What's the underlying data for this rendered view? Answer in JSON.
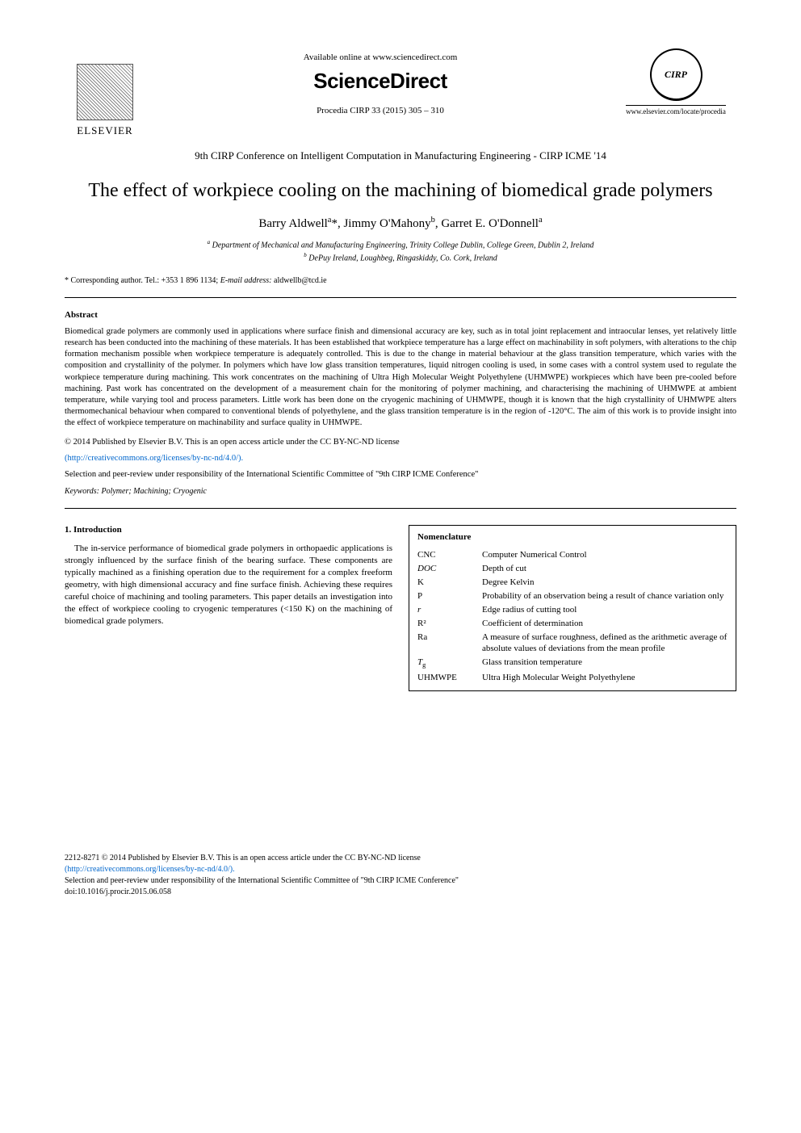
{
  "header": {
    "available_online": "Available online at www.sciencedirect.com",
    "sciencedirect": "ScienceDirect",
    "journal_line": "Procedia CIRP 33 (2015) 305 – 310",
    "elsevier_label": "ELSEVIER",
    "cirp_label": "CIRP",
    "elsevier_url": "www.elsevier.com/locate/procedia"
  },
  "conference": "9th CIRP Conference on Intelligent Computation in Manufacturing Engineering - CIRP ICME '14",
  "title": "The effect of workpiece cooling on the machining of biomedical grade polymers",
  "authors_html": "Barry Aldwell<sup>a</sup>*, Jimmy O'Mahony<sup>b</sup>, Garret E. O'Donnell<sup>a</sup>",
  "affiliations": {
    "a": "a Department of Mechanical and Manufacturing Engineering, Trinity College Dublin, College Green, Dublin 2, Ireland",
    "b": "b DePuy Ireland, Loughbeg, Ringaskiddy, Co. Cork, Ireland"
  },
  "corresponding": "* Corresponding author. Tel.: +353 1 896 1134; E-mail address: aldwellb@tcd.ie",
  "abstract": {
    "heading": "Abstract",
    "text": "Biomedical grade polymers are commonly used in applications where surface finish and dimensional accuracy are key, such as in total joint replacement and intraocular lenses, yet relatively little research has been conducted into the machining of these materials. It has been established that workpiece temperature has a large effect on machinability in soft polymers, with alterations to the chip formation mechanism possible when workpiece temperature is adequately controlled. This is due to the change in material behaviour at the glass transition temperature, which varies with the composition and crystallinity of the polymer. In polymers which have low glass transition temperatures, liquid nitrogen cooling is used, in some cases with a control system used to regulate the workpiece temperature during machining. This work concentrates on the machining of Ultra High Molecular Weight Polyethylene (UHMWPE) workpieces which have been pre-cooled before machining. Past work has concentrated on the development of a measurement chain for the monitoring of polymer machining, and characterising the machining of UHMWPE at ambient temperature, while varying tool and process parameters. Little work has been done on the cryogenic machining of UHMWPE, though it is known that the high crystallinity of UHMWPE alters thermomechanical behaviour when compared to conventional blends of polyethylene, and the glass transition temperature is in the region of -120°C. The aim of this work is to provide insight into the effect of workpiece temperature on machinability and surface quality in UHMWPE."
  },
  "license": {
    "copyright": "© 2014 Published by Elsevier B.V. This is an open access article under the CC BY-NC-ND license",
    "link": "(http://creativecommons.org/licenses/by-nc-nd/4.0/).",
    "selection": "Selection and peer-review under responsibility of the International Scientific Committee of \"9th CIRP ICME Conference\""
  },
  "keywords": {
    "label": "Keywords:",
    "items": "Polymer; Machining; Cryogenic"
  },
  "intro": {
    "heading": "1. Introduction",
    "text": "The in-service performance of biomedical grade polymers in orthopaedic applications is strongly influenced by the surface finish of the bearing surface. These components are typically machined as a finishing operation due to the requirement for a complex freeform geometry, with high dimensional accuracy and fine surface finish. Achieving these requires careful choice of machining and tooling parameters. This paper details an investigation into the effect of workpiece cooling to cryogenic temperatures (<150 K) on the machining of biomedical grade polymers."
  },
  "nomenclature": {
    "heading": "Nomenclature",
    "items": [
      {
        "sym": "CNC",
        "def": "Computer Numerical Control"
      },
      {
        "sym": "DOC",
        "def": "Depth of cut"
      },
      {
        "sym": "K",
        "def": "Degree Kelvin"
      },
      {
        "sym": "P",
        "def": "Probability of an observation being a result of chance variation only"
      },
      {
        "sym": "r",
        "def": "Edge radius of cutting tool"
      },
      {
        "sym": "R²",
        "def": "Coefficient of determination"
      },
      {
        "sym": "Ra",
        "def": "A measure of surface roughness, defined as the arithmetic average of absolute values of deviations from the mean profile"
      },
      {
        "sym": "Tg",
        "def": "Glass transition temperature"
      },
      {
        "sym": "UHMWPE",
        "def": "Ultra High Molecular Weight Polyethylene"
      }
    ]
  },
  "footer": {
    "issn": "2212-8271 © 2014 Published by Elsevier B.V. This is an open access article under the CC BY-NC-ND license",
    "link": "(http://creativecommons.org/licenses/by-nc-nd/4.0/).",
    "selection": "Selection and peer-review under responsibility of the International Scientific Committee of \"9th CIRP ICME Conference\"",
    "doi": "doi:10.1016/j.procir.2015.06.058"
  },
  "colors": {
    "text": "#000000",
    "link": "#0066cc",
    "background": "#ffffff"
  },
  "typography": {
    "body_font": "Times New Roman",
    "title_fontsize": 24,
    "body_fontsize": 11,
    "abstract_fontsize": 10.5,
    "footer_fontsize": 10
  }
}
